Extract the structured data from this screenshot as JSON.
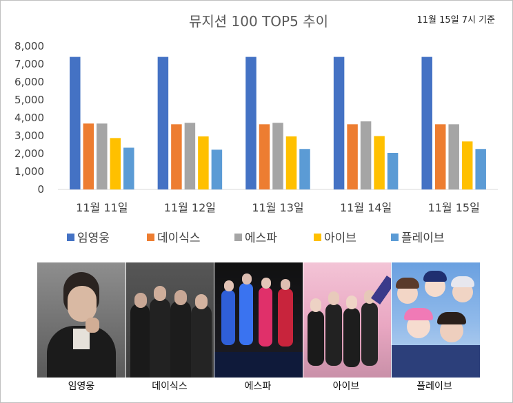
{
  "chart_data": {
    "type": "bar",
    "title": "뮤지션 100 TOP5 추이",
    "note": "11월 15일 7시 기준",
    "categories": [
      "11월 11일",
      "11월 12일",
      "11월 13일",
      "11월 14일",
      "11월 15일"
    ],
    "series": [
      {
        "name": "임영웅",
        "color": "#4472C4",
        "values": [
          7400,
          7400,
          7400,
          7400,
          7400
        ]
      },
      {
        "name": "데이식스",
        "color": "#ED7D31",
        "values": [
          3680,
          3640,
          3640,
          3640,
          3640
        ]
      },
      {
        "name": "에스파",
        "color": "#A5A5A5",
        "values": [
          3680,
          3720,
          3720,
          3800,
          3640
        ]
      },
      {
        "name": "아이브",
        "color": "#FFC000",
        "values": [
          2870,
          2960,
          2960,
          2980,
          2680
        ]
      },
      {
        "name": "플레이브",
        "color": "#5B9BD5",
        "values": [
          2330,
          2220,
          2260,
          2040,
          2260
        ]
      }
    ],
    "yticks": [
      "0",
      "1,000",
      "2,000",
      "3,000",
      "4,000",
      "5,000",
      "6,000",
      "7,000",
      "8,000"
    ],
    "ylim": [
      0,
      8000
    ],
    "grid": false,
    "legend_position": "bottom"
  },
  "photos": [
    {
      "name": "임영웅",
      "icon": "portrait-photo"
    },
    {
      "name": "데이식스",
      "icon": "group-photo"
    },
    {
      "name": "에스파",
      "icon": "group-photo"
    },
    {
      "name": "아이브",
      "icon": "group-photo"
    },
    {
      "name": "플레이브",
      "icon": "illustration"
    }
  ]
}
